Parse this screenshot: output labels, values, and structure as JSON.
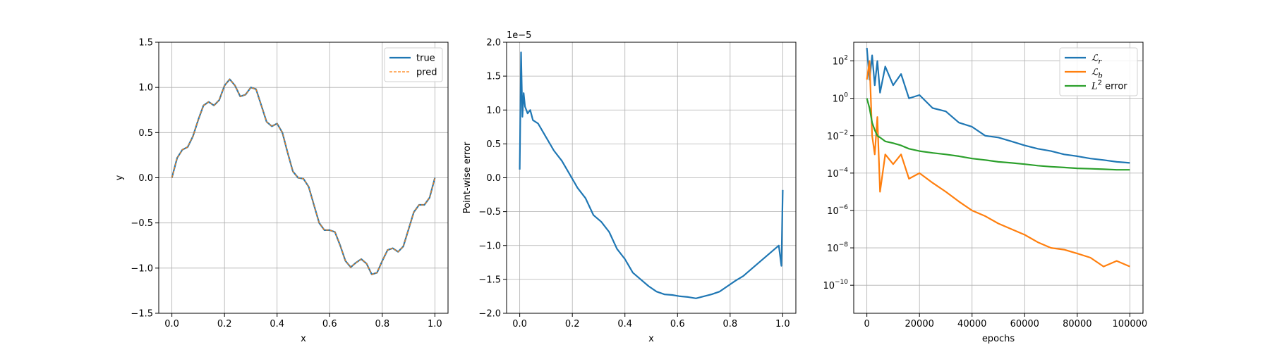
{
  "chart_data": [
    {
      "type": "line",
      "xlabel": "x",
      "ylabel": "y",
      "xlim": [
        -0.05,
        1.05
      ],
      "ylim": [
        -1.5,
        1.5
      ],
      "grid": true,
      "legend": "top-right",
      "xticks": [
        0.0,
        0.2,
        0.4,
        0.6,
        0.8,
        1.0
      ],
      "xtick_labels": [
        "0.0",
        "0.2",
        "0.4",
        "0.6",
        "0.8",
        "1.0"
      ],
      "yticks": [
        -1.5,
        -1.0,
        -0.5,
        0.0,
        0.5,
        1.0,
        1.5
      ],
      "ytick_labels": [
        "−1.5",
        "−1.0",
        "−0.5",
        "0.0",
        "0.5",
        "1.0",
        "1.5"
      ],
      "x": [
        0.0,
        0.02,
        0.04,
        0.06,
        0.08,
        0.1,
        0.12,
        0.14,
        0.16,
        0.18,
        0.2,
        0.22,
        0.24,
        0.26,
        0.28,
        0.3,
        0.32,
        0.34,
        0.36,
        0.38,
        0.4,
        0.42,
        0.44,
        0.46,
        0.48,
        0.5,
        0.52,
        0.54,
        0.56,
        0.58,
        0.6,
        0.62,
        0.64,
        0.66,
        0.68,
        0.7,
        0.72,
        0.74,
        0.76,
        0.78,
        0.8,
        0.82,
        0.84,
        0.86,
        0.88,
        0.9,
        0.92,
        0.94,
        0.96,
        0.98,
        1.0
      ],
      "series": [
        {
          "name": "true",
          "color": "#1f77b4",
          "style": "solid",
          "values": [
            0.0,
            0.22,
            0.31,
            0.34,
            0.46,
            0.64,
            0.8,
            0.84,
            0.8,
            0.86,
            1.02,
            1.09,
            1.02,
            0.9,
            0.92,
            1.0,
            0.98,
            0.8,
            0.62,
            0.57,
            0.6,
            0.5,
            0.28,
            0.07,
            0.0,
            -0.01,
            -0.1,
            -0.3,
            -0.5,
            -0.58,
            -0.58,
            -0.6,
            -0.75,
            -0.92,
            -0.99,
            -0.94,
            -0.9,
            -0.95,
            -1.07,
            -1.05,
            -0.92,
            -0.8,
            -0.78,
            -0.82,
            -0.76,
            -0.57,
            -0.38,
            -0.3,
            -0.3,
            -0.22,
            0.0
          ]
        },
        {
          "name": "pred",
          "color": "#ff7f0e",
          "style": "dashed",
          "values": [
            0.0,
            0.22,
            0.31,
            0.34,
            0.46,
            0.64,
            0.8,
            0.84,
            0.8,
            0.86,
            1.02,
            1.09,
            1.02,
            0.9,
            0.92,
            1.0,
            0.98,
            0.8,
            0.62,
            0.57,
            0.6,
            0.5,
            0.28,
            0.07,
            0.0,
            -0.01,
            -0.1,
            -0.3,
            -0.5,
            -0.58,
            -0.58,
            -0.6,
            -0.75,
            -0.92,
            -0.99,
            -0.94,
            -0.9,
            -0.95,
            -1.07,
            -1.05,
            -0.92,
            -0.8,
            -0.78,
            -0.82,
            -0.76,
            -0.57,
            -0.38,
            -0.3,
            -0.3,
            -0.22,
            0.0
          ]
        }
      ]
    },
    {
      "type": "line",
      "xlabel": "x",
      "ylabel": "Point-wise error",
      "offset_text": "1e−5",
      "xlim": [
        -0.05,
        1.05
      ],
      "ylim": [
        -2.0,
        2.0
      ],
      "grid": true,
      "xticks": [
        0.0,
        0.2,
        0.4,
        0.6,
        0.8,
        1.0
      ],
      "xtick_labels": [
        "0.0",
        "0.2",
        "0.4",
        "0.6",
        "0.8",
        "1.0"
      ],
      "yticks": [
        -2.0,
        -1.5,
        -1.0,
        -0.5,
        0.0,
        0.5,
        1.0,
        1.5,
        2.0
      ],
      "ytick_labels": [
        "−2.0",
        "−1.5",
        "−1.0",
        "−0.5",
        "0.0",
        "0.5",
        "1.0",
        "1.5",
        "2.0"
      ],
      "x": [
        0.0,
        0.005,
        0.01,
        0.015,
        0.02,
        0.03,
        0.04,
        0.05,
        0.07,
        0.1,
        0.13,
        0.16,
        0.19,
        0.22,
        0.25,
        0.28,
        0.31,
        0.34,
        0.37,
        0.4,
        0.43,
        0.46,
        0.49,
        0.52,
        0.55,
        0.58,
        0.61,
        0.64,
        0.67,
        0.7,
        0.73,
        0.76,
        0.79,
        0.82,
        0.85,
        0.88,
        0.91,
        0.94,
        0.97,
        0.985,
        0.995,
        1.0
      ],
      "series": [
        {
          "name": "",
          "color": "#1f77b4",
          "style": "solid",
          "values": [
            0.12,
            1.85,
            0.9,
            1.25,
            1.05,
            0.95,
            1.0,
            0.85,
            0.8,
            0.6,
            0.4,
            0.25,
            0.05,
            -0.15,
            -0.3,
            -0.55,
            -0.65,
            -0.8,
            -1.05,
            -1.2,
            -1.4,
            -1.5,
            -1.6,
            -1.68,
            -1.72,
            -1.73,
            -1.75,
            -1.76,
            -1.78,
            -1.75,
            -1.72,
            -1.68,
            -1.6,
            -1.52,
            -1.45,
            -1.35,
            -1.25,
            -1.15,
            -1.05,
            -1.0,
            -1.3,
            -0.18
          ]
        }
      ]
    },
    {
      "type": "line",
      "xlabel": "epochs",
      "ylabel": "",
      "yscale": "log",
      "xlim": [
        -5000,
        105000
      ],
      "ylim_exp": [
        -11.5,
        3.0
      ],
      "grid": true,
      "legend": "top-right",
      "xticks": [
        0,
        20000,
        40000,
        60000,
        80000,
        100000
      ],
      "xtick_labels": [
        "0",
        "20000",
        "40000",
        "60000",
        "80000",
        "100000"
      ],
      "yticks_exp": [
        -10,
        -8,
        -6,
        -4,
        -2,
        0,
        2
      ],
      "ytick_bases": [
        "10",
        "10",
        "10",
        "10",
        "10",
        "10",
        "10"
      ],
      "ytick_exps": [
        "−10",
        "−8",
        "−6",
        "−4",
        "−2",
        "0",
        "2"
      ],
      "x": [
        0,
        1000,
        2000,
        3000,
        4000,
        5000,
        7000,
        10000,
        13000,
        16000,
        20000,
        25000,
        30000,
        35000,
        40000,
        45000,
        50000,
        55000,
        60000,
        65000,
        70000,
        75000,
        80000,
        85000,
        90000,
        95000,
        100000
      ],
      "series": [
        {
          "name": "ℒ",
          "sub": "r",
          "color": "#1f77b4",
          "values": [
            500,
            10,
            200,
            5,
            100,
            2,
            50,
            5,
            20,
            1,
            1.5,
            0.3,
            0.2,
            0.05,
            0.03,
            0.01,
            0.008,
            0.005,
            0.003,
            0.002,
            0.0015,
            0.001,
            0.0008,
            0.0006,
            0.0005,
            0.0004,
            0.00035
          ]
        },
        {
          "name": "ℒ",
          "sub": "b",
          "color": "#ff7f0e",
          "values": [
            10,
            100,
            0.01,
            0.001,
            0.1,
            1e-05,
            0.001,
            0.0003,
            0.001,
            5e-05,
            0.0001,
            3e-05,
            1e-05,
            3e-06,
            1e-06,
            5e-07,
            2e-07,
            1e-07,
            5e-08,
            2e-08,
            1e-08,
            8e-09,
            5e-09,
            3e-09,
            1e-09,
            2e-09,
            1e-09
          ]
        },
        {
          "name": "L",
          "sup": "2",
          "suffix": " error",
          "color": "#2ca02c",
          "values": [
            1.0,
            0.3,
            0.05,
            0.02,
            0.01,
            0.008,
            0.005,
            0.004,
            0.003,
            0.002,
            0.0015,
            0.0012,
            0.001,
            0.0008,
            0.0006,
            0.0005,
            0.0004,
            0.00035,
            0.0003,
            0.00025,
            0.00022,
            0.0002,
            0.00018,
            0.00017,
            0.00016,
            0.00015,
            0.00015
          ]
        }
      ]
    }
  ]
}
